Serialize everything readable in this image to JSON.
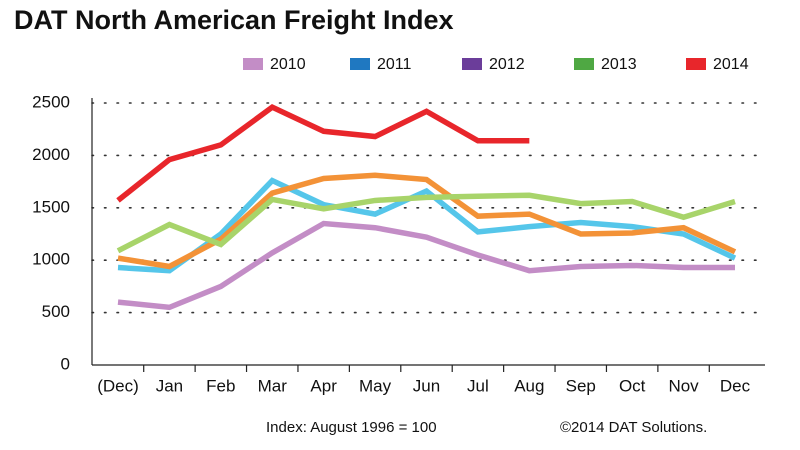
{
  "chart_data": {
    "type": "line",
    "title": "DAT North American Freight Index",
    "categories": [
      "(Dec)",
      "Jan",
      "Feb",
      "Mar",
      "Apr",
      "May",
      "Jun",
      "Jul",
      "Aug",
      "Sep",
      "Oct",
      "Nov",
      "Dec"
    ],
    "series": [
      {
        "name": "2010",
        "color": "#c38dc6",
        "legend_color": "#c38dc6",
        "values": [
          600,
          550,
          750,
          1070,
          1350,
          1310,
          1220,
          1050,
          900,
          940,
          950,
          930,
          930
        ]
      },
      {
        "name": "2011",
        "color": "#55c6ea",
        "legend_color": "#1f78c1",
        "values": [
          930,
          900,
          1250,
          1760,
          1530,
          1440,
          1660,
          1270,
          1320,
          1360,
          1320,
          1250,
          1020
        ]
      },
      {
        "name": "2012",
        "color": "#f39237",
        "legend_color": "#6b3d9a",
        "values": [
          1020,
          940,
          1200,
          1640,
          1780,
          1810,
          1770,
          1420,
          1440,
          1250,
          1260,
          1310,
          1080
        ]
      },
      {
        "name": "2013",
        "color": "#a8d46a",
        "legend_color": "#4fa843",
        "values": [
          1090,
          1340,
          1150,
          1580,
          1490,
          1570,
          1600,
          1610,
          1620,
          1540,
          1560,
          1410,
          1560
        ]
      },
      {
        "name": "2014",
        "color": "#e8262b",
        "legend_color": "#e8262b",
        "values": [
          1570,
          1960,
          2100,
          2460,
          2230,
          2180,
          2420,
          2140,
          2140,
          null,
          null,
          null,
          null
        ]
      }
    ],
    "ylim": [
      0,
      2500
    ],
    "yticks": [
      0,
      500,
      1000,
      1500,
      2000,
      2500
    ],
    "grid": true,
    "legend": "top",
    "footnote_left": "Index: August 1996 = 100",
    "footnote_right": "©2014 DAT Solutions."
  }
}
